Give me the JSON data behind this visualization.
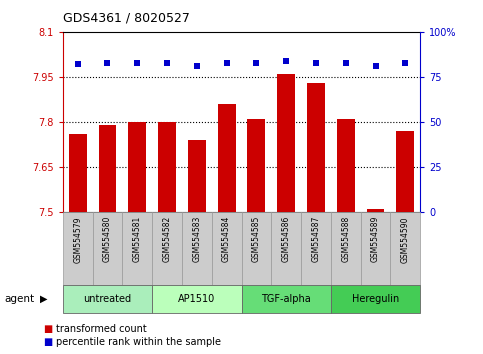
{
  "title": "GDS4361 / 8020527",
  "samples": [
    "GSM554579",
    "GSM554580",
    "GSM554581",
    "GSM554582",
    "GSM554583",
    "GSM554584",
    "GSM554585",
    "GSM554586",
    "GSM554587",
    "GSM554588",
    "GSM554589",
    "GSM554590"
  ],
  "bar_values": [
    7.76,
    7.79,
    7.8,
    7.8,
    7.74,
    7.86,
    7.81,
    7.96,
    7.93,
    7.81,
    7.51,
    7.77
  ],
  "percentile_values": [
    82,
    83,
    83,
    83,
    81,
    83,
    83,
    84,
    83,
    83,
    81,
    83
  ],
  "bar_color": "#cc0000",
  "dot_color": "#0000cc",
  "ylim_left": [
    7.5,
    8.1
  ],
  "ylim_right": [
    0,
    100
  ],
  "yticks_left": [
    7.5,
    7.65,
    7.8,
    7.95,
    8.1
  ],
  "ytick_labels_left": [
    "7.5",
    "7.65",
    "7.8",
    "7.95",
    "8.1"
  ],
  "yticks_right": [
    0,
    25,
    50,
    75,
    100
  ],
  "ytick_labels_right": [
    "0",
    "25",
    "50",
    "75",
    "100%"
  ],
  "gridlines": [
    7.65,
    7.8,
    7.95
  ],
  "agent_groups": [
    {
      "label": "untreated",
      "start": 0,
      "end": 3,
      "color": "#aaeebb"
    },
    {
      "label": "AP1510",
      "start": 3,
      "end": 6,
      "color": "#bbffbb"
    },
    {
      "label": "TGF-alpha",
      "start": 6,
      "end": 9,
      "color": "#66dd77"
    },
    {
      "label": "Heregulin",
      "start": 9,
      "end": 12,
      "color": "#44cc55"
    }
  ],
  "agent_label": "agent",
  "legend_bar_label": "transformed count",
  "legend_dot_label": "percentile rank within the sample",
  "background_color": "#ffffff",
  "plot_bg_color": "#ffffff",
  "tick_label_area_color": "#cccccc"
}
